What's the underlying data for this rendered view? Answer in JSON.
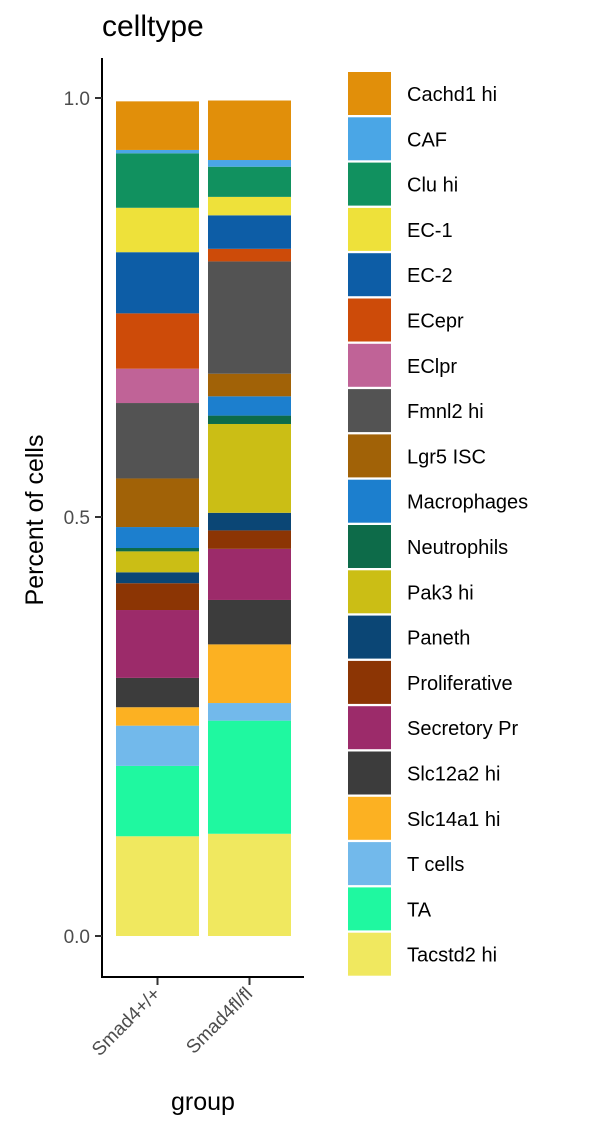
{
  "chart_data": {
    "type": "bar",
    "stacked": true,
    "title": "",
    "legend_title": "celltype",
    "legend_position": "right",
    "xlabel": "group",
    "ylabel": "Percent of cells",
    "ylim": [
      0,
      1.0
    ],
    "yticks": [
      0.0,
      0.5,
      1.0
    ],
    "ytick_labels": [
      "0.0",
      "0.5",
      "1.0"
    ],
    "grid": false,
    "categories": [
      "Smad4+/+",
      "Smad4fl/fl"
    ],
    "series": [
      {
        "name": "Tacstd2 hi",
        "color": "#F0E85F",
        "values": [
          0.119,
          0.122
        ]
      },
      {
        "name": "TA",
        "color": "#1FF8A0",
        "values": [
          0.084,
          0.135
        ]
      },
      {
        "name": "T cells",
        "color": "#72B9EB",
        "values": [
          0.048,
          0.021
        ]
      },
      {
        "name": "Slc14a1 hi",
        "color": "#FCB122",
        "values": [
          0.022,
          0.07
        ]
      },
      {
        "name": "Slc12a2 hi",
        "color": "#3C3C3C",
        "values": [
          0.035,
          0.053
        ]
      },
      {
        "name": "Secretory Pr",
        "color": "#9C2B6A",
        "values": [
          0.081,
          0.061
        ]
      },
      {
        "name": "Proliferative",
        "color": "#8C3504",
        "values": [
          0.032,
          0.022
        ]
      },
      {
        "name": "Paneth",
        "color": "#0B4675",
        "values": [
          0.013,
          0.021
        ]
      },
      {
        "name": "Pak3 hi",
        "color": "#CBBE15",
        "values": [
          0.025,
          0.106
        ]
      },
      {
        "name": "Neutrophils",
        "color": "#0D6B49",
        "values": [
          0.004,
          0.01
        ]
      },
      {
        "name": "Macrophages",
        "color": "#1C7FCE",
        "values": [
          0.025,
          0.023
        ]
      },
      {
        "name": "Lgr5 ISC",
        "color": "#A16207",
        "values": [
          0.058,
          0.027
        ]
      },
      {
        "name": "Fmnl2 hi",
        "color": "#535353",
        "values": [
          0.09,
          0.134
        ]
      },
      {
        "name": "EClpr",
        "color": "#C06397",
        "values": [
          0.041,
          0.0
        ]
      },
      {
        "name": "ECepr",
        "color": "#CD4B09",
        "values": [
          0.066,
          0.015
        ]
      },
      {
        "name": "EC-2",
        "color": "#0D5DA6",
        "values": [
          0.073,
          0.04
        ]
      },
      {
        "name": "EC-1",
        "color": "#EEE13A",
        "values": [
          0.053,
          0.022
        ]
      },
      {
        "name": "Clu hi",
        "color": "#11915F",
        "values": [
          0.065,
          0.036
        ]
      },
      {
        "name": "CAF",
        "color": "#4AA6E6",
        "values": [
          0.004,
          0.008
        ]
      },
      {
        "name": "Cachd1 hi",
        "color": "#E18F0A",
        "values": [
          0.058,
          0.071
        ]
      }
    ],
    "legend_order": [
      "Cachd1 hi",
      "CAF",
      "Clu hi",
      "EC-1",
      "EC-2",
      "ECepr",
      "EClpr",
      "Fmnl2 hi",
      "Lgr5 ISC",
      "Macrophages",
      "Neutrophils",
      "Pak3 hi",
      "Paneth",
      "Proliferative",
      "Secretory Pr",
      "Slc12a2 hi",
      "Slc14a1 hi",
      "T cells",
      "TA",
      "Tacstd2 hi"
    ]
  }
}
